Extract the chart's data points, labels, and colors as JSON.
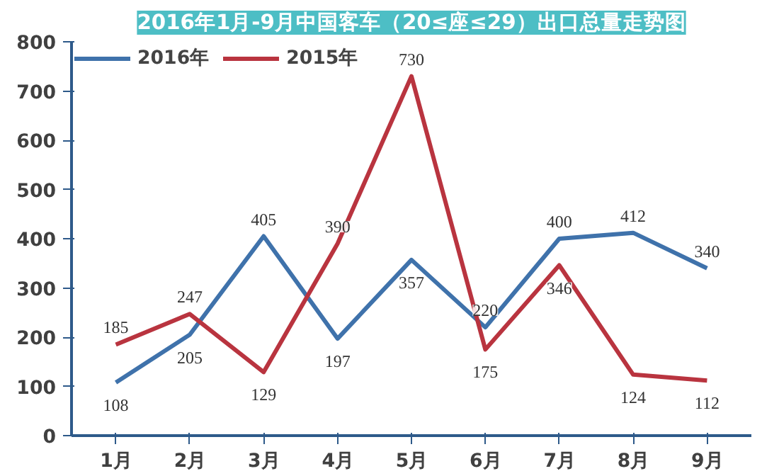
{
  "chart_data": {
    "type": "line",
    "title": "2016年1月-9月中国客车（20≤座≤29）出口总量走势图",
    "categories": [
      "1月",
      "2月",
      "3月",
      "4月",
      "5月",
      "6月",
      "7月",
      "8月",
      "9月"
    ],
    "series": [
      {
        "name": "2016年",
        "color": "#3f72ab",
        "values": [
          108,
          205,
          405,
          197,
          357,
          220,
          400,
          412,
          340
        ]
      },
      {
        "name": "2015年",
        "color": "#b9343f",
        "values": [
          185,
          247,
          129,
          390,
          730,
          175,
          346,
          124,
          112
        ]
      }
    ],
    "ylim": [
      0,
      800
    ],
    "yticks": [
      0,
      100,
      200,
      300,
      400,
      500,
      600,
      700,
      800
    ],
    "grid": false,
    "legend": "top left",
    "data_labels": true,
    "marker": "none",
    "line_style": "solid"
  }
}
